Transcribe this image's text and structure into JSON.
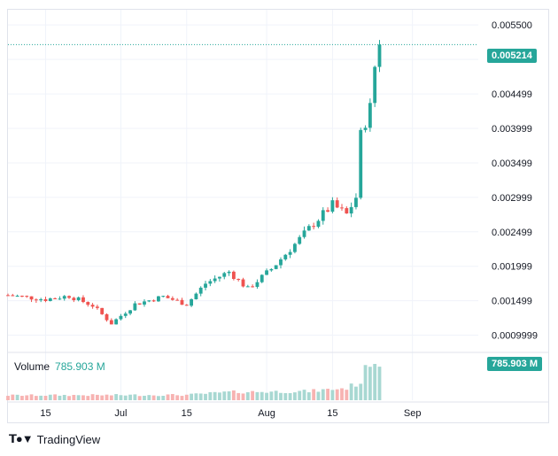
{
  "chart_data": {
    "type": "candlestick",
    "y_ticks": [
      "0.005500",
      "0.004999",
      "0.004499",
      "0.003999",
      "0.003499",
      "0.002999",
      "0.002499",
      "0.001999",
      "0.001499",
      "0.0009999"
    ],
    "y_tick_values": [
      0.0055,
      0.004999,
      0.004499,
      0.003999,
      0.003499,
      0.002999,
      0.002499,
      0.001999,
      0.001499,
      0.0009999
    ],
    "ylim": [
      0.00075,
      0.00572
    ],
    "x_ticks": [
      "15",
      "Jul",
      "15",
      "Aug",
      "15",
      "Sep"
    ],
    "x_tick_dates": [
      "2024-06-15",
      "2024-07-01",
      "2024-07-15",
      "2024-08-01",
      "2024-08-15",
      "2024-09-01"
    ],
    "xlim": [
      "2024-06-07",
      "2024-09-15"
    ],
    "date_range": [
      "2024-06-07",
      "2024-08-25"
    ],
    "last_price": "0.005214",
    "last_price_value": 0.005214,
    "price_path": [
      [
        "2024-06-07",
        0.00158
      ],
      [
        "2024-06-15",
        0.00152
      ],
      [
        "2024-06-20",
        0.00157
      ],
      [
        "2024-06-25",
        0.00143
      ],
      [
        "2024-06-29",
        0.00117
      ],
      [
        "2024-07-04",
        0.00145
      ],
      [
        "2024-07-10",
        0.00156
      ],
      [
        "2024-07-15",
        0.00145
      ],
      [
        "2024-07-19",
        0.00175
      ],
      [
        "2024-07-24",
        0.00192
      ],
      [
        "2024-07-28",
        0.00167
      ],
      [
        "2024-08-02",
        0.00196
      ],
      [
        "2024-08-07",
        0.00232
      ],
      [
        "2024-08-11",
        0.00262
      ],
      [
        "2024-08-15",
        0.00289
      ],
      [
        "2024-08-18",
        0.00275
      ],
      [
        "2024-08-20",
        0.003
      ],
      [
        "2024-08-21",
        0.0039
      ],
      [
        "2024-08-23",
        0.0043
      ],
      [
        "2024-08-24",
        0.0049
      ],
      [
        "2024-08-25",
        0.005214
      ]
    ],
    "volume": {
      "label": "Volume",
      "last": "785.903 M",
      "profile": [
        [
          "2024-06-07",
          0.12
        ],
        [
          "2024-07-15",
          0.13
        ],
        [
          "2024-07-24",
          0.2
        ],
        [
          "2024-08-10",
          0.22
        ],
        [
          "2024-08-18",
          0.3
        ],
        [
          "2024-08-21",
          0.45
        ],
        [
          "2024-08-23",
          1.0
        ],
        [
          "2024-08-25",
          0.93
        ]
      ]
    }
  },
  "colors": {
    "up": "#26a69a",
    "down": "#ef5350",
    "vol_up": "#a8d8d2",
    "vol_down": "#f7b3b2",
    "grid": "#f0f3fa",
    "last_line": "#26a69a"
  },
  "footer": {
    "brand": "TradingView"
  }
}
